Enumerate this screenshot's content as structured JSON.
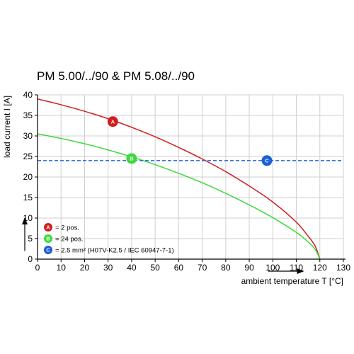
{
  "chart_data": {
    "type": "line",
    "title": "PM 5.00/../90 & PM 5.08/../90",
    "xlabel": "ambient temperature T [°C]",
    "ylabel": "load current I [A]",
    "xlim": [
      0,
      130
    ],
    "ylim": [
      0,
      40
    ],
    "x_ticks": [
      0,
      10,
      20,
      30,
      40,
      50,
      60,
      70,
      80,
      90,
      100,
      110,
      120,
      130
    ],
    "y_ticks": [
      0,
      5,
      10,
      15,
      20,
      25,
      30,
      35,
      40
    ],
    "grid": true,
    "series": [
      {
        "key": "A",
        "name": "= 2 pos.",
        "color": "#d11f1f",
        "x": [
          0,
          10,
          20,
          30,
          40,
          50,
          60,
          70,
          80,
          90,
          100,
          110,
          115,
          118,
          120
        ],
        "y": [
          39,
          37.6,
          36.0,
          34.2,
          32.1,
          29.8,
          27.2,
          24.4,
          21.3,
          17.8,
          13.9,
          9.0,
          5.6,
          3.2,
          0
        ]
      },
      {
        "key": "B",
        "name": "= 24 pos.",
        "color": "#3dd93d",
        "x": [
          0,
          10,
          20,
          30,
          40,
          50,
          60,
          70,
          80,
          90,
          100,
          110,
          115,
          118,
          120
        ],
        "y": [
          30.5,
          29.4,
          28.1,
          26.6,
          24.9,
          23.0,
          20.9,
          18.6,
          16.0,
          13.2,
          10.1,
          6.5,
          4.2,
          2.4,
          0
        ]
      },
      {
        "key": "C",
        "name": "= 2.5 mm² (H07V-K2.5 / IEC 60947-7-1)",
        "color": "#1a5fd6",
        "style": "dashed",
        "x": [
          0,
          130
        ],
        "y": [
          24,
          24
        ]
      }
    ],
    "markers": [
      {
        "label": "A",
        "x": 32,
        "y": 33.5,
        "color": "#d11f1f"
      },
      {
        "label": "B",
        "x": 40,
        "y": 24.5,
        "color": "#3dd93d"
      },
      {
        "label": "C",
        "x": 97.5,
        "y": 24,
        "color": "#1a5fd6"
      }
    ],
    "legend_placement": "bottom-left"
  }
}
